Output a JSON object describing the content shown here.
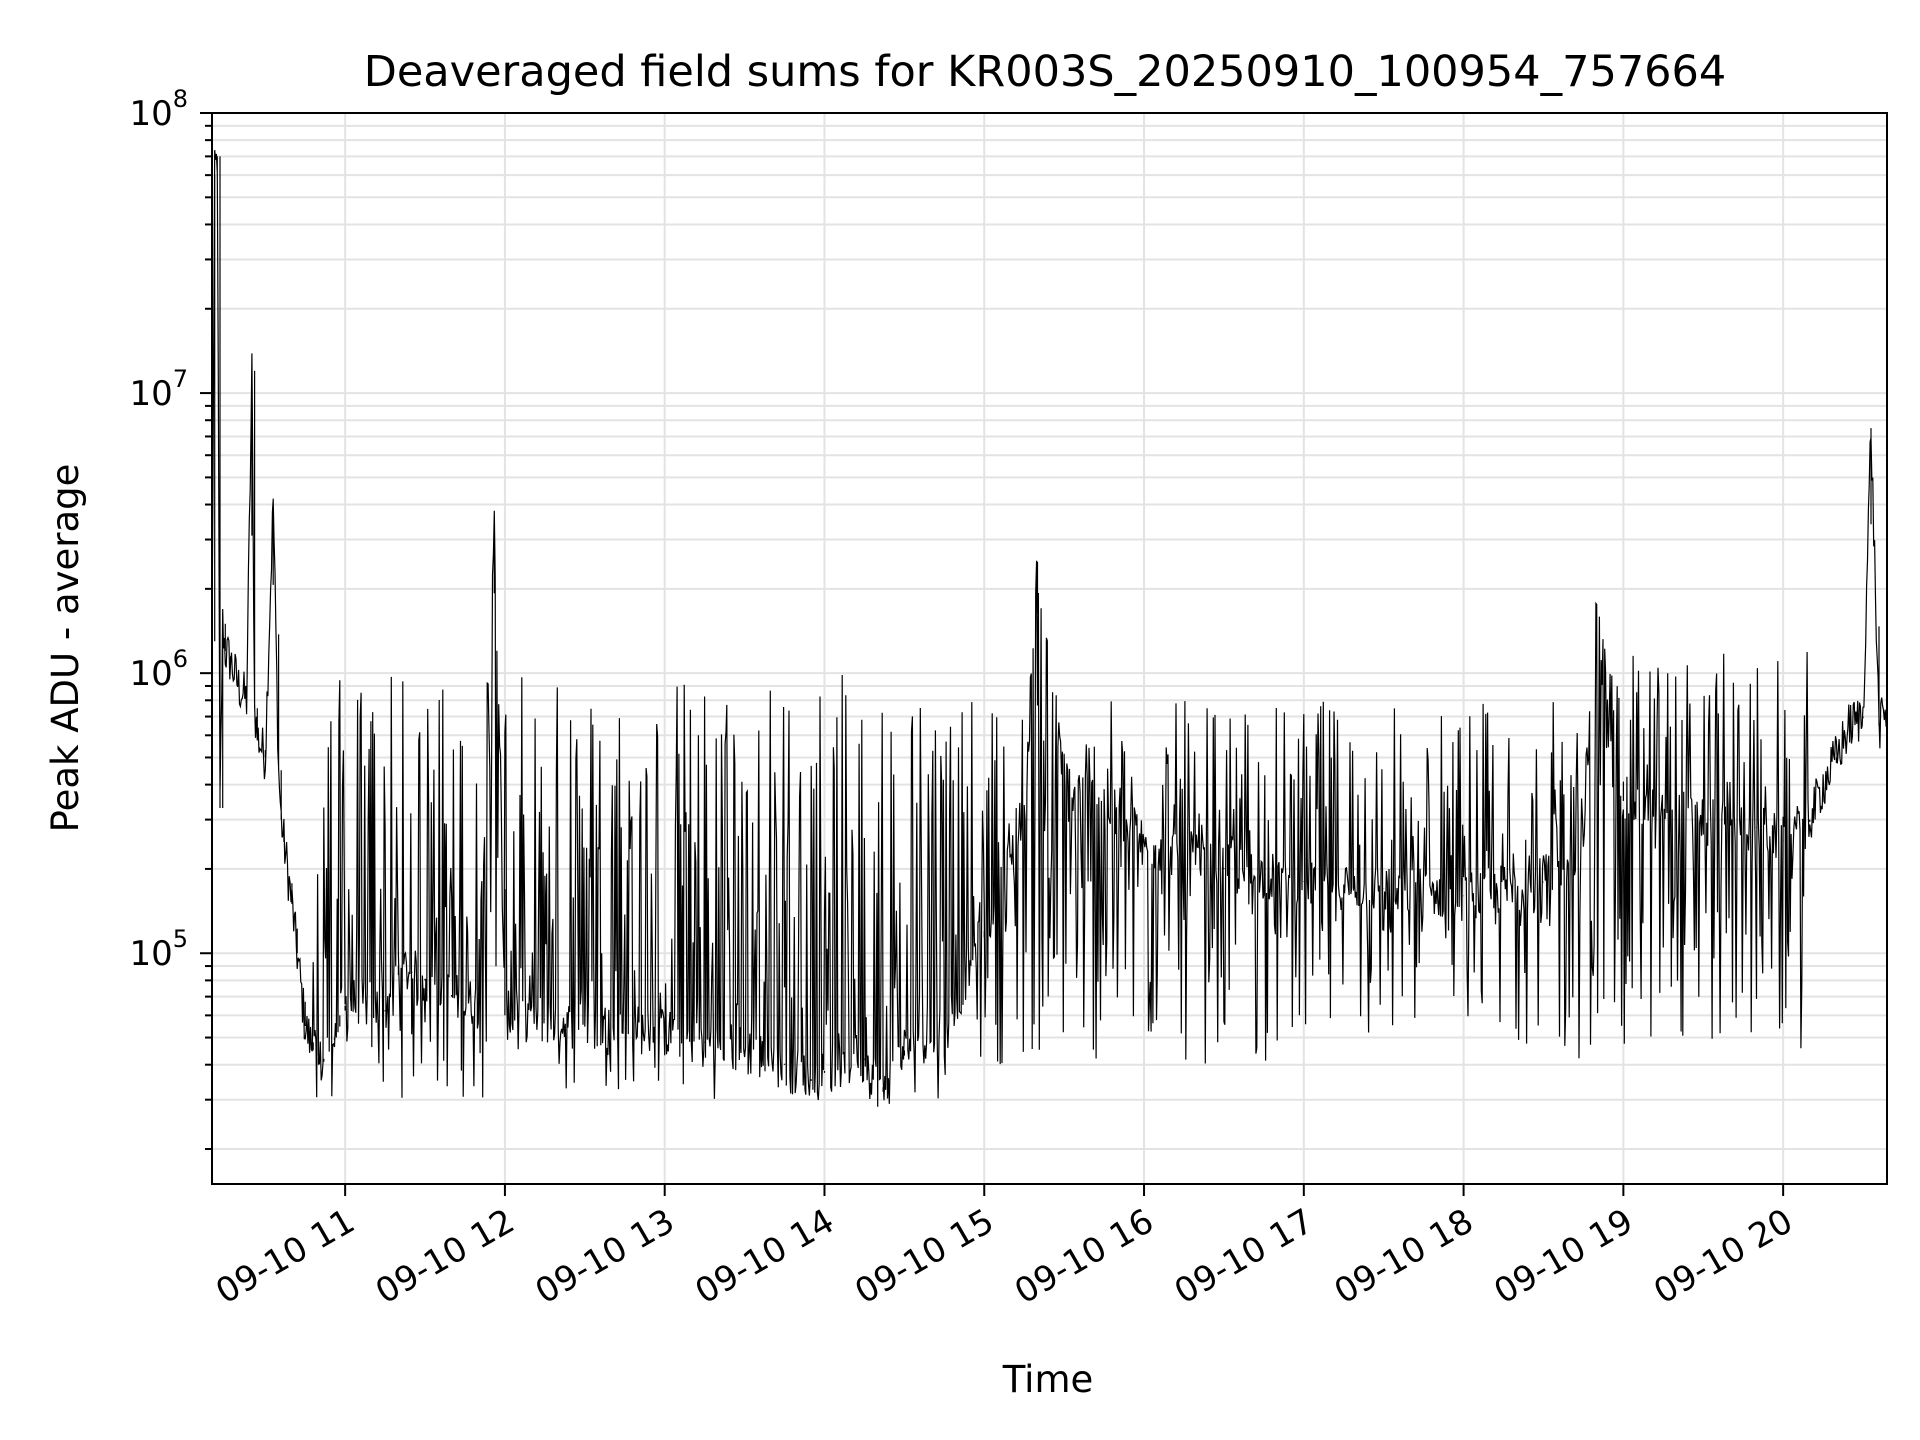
{
  "chart_data": {
    "type": "line",
    "title": "Deaveraged field sums for KR003S_20250910_100954_757664",
    "xlabel": "Time",
    "ylabel": "Peak ADU - average",
    "yscale": "log",
    "ylim": [
      15000,
      100000000
    ],
    "xlim": [
      "2025-09-10 10:10",
      "2025-09-10 20:39"
    ],
    "grid": true,
    "grid_minor_y": true,
    "x_ticks": [
      {
        "value": "2025-09-10 11:00",
        "label": "09-10 11"
      },
      {
        "value": "2025-09-10 12:00",
        "label": "09-10 12"
      },
      {
        "value": "2025-09-10 13:00",
        "label": "09-10 13"
      },
      {
        "value": "2025-09-10 14:00",
        "label": "09-10 14"
      },
      {
        "value": "2025-09-10 15:00",
        "label": "09-10 15"
      },
      {
        "value": "2025-09-10 16:00",
        "label": "09-10 16"
      },
      {
        "value": "2025-09-10 17:00",
        "label": "09-10 17"
      },
      {
        "value": "2025-09-10 18:00",
        "label": "09-10 18"
      },
      {
        "value": "2025-09-10 19:00",
        "label": "09-10 19"
      },
      {
        "value": "2025-09-10 20:00",
        "label": "09-10 20"
      }
    ],
    "y_ticks": [
      {
        "value": 100000,
        "base": "10",
        "exp": "5"
      },
      {
        "value": 1000000,
        "base": "10",
        "exp": "6"
      },
      {
        "value": 10000000,
        "base": "10",
        "exp": "7"
      },
      {
        "value": 100000000,
        "base": "10",
        "exp": "8"
      }
    ],
    "line_color": "#000000",
    "series": [
      {
        "x": [
          "2025-09-10 10:10",
          "2025-09-10 10:11",
          "2025-09-10 10:12",
          "2025-09-10 10:13",
          "2025-09-10 10:14",
          "2025-09-10 10:15",
          "2025-09-10 10:17",
          "2025-09-10 10:20",
          "2025-09-10 10:23",
          "2025-09-10 10:25",
          "2025-09-10 10:26",
          "2025-09-10 10:27",
          "2025-09-10 10:30",
          "2025-09-10 10:33",
          "2025-09-10 10:35",
          "2025-09-10 10:36",
          "2025-09-10 10:37",
          "2025-09-10 10:40",
          "2025-09-10 10:42",
          "2025-09-10 10:45",
          "2025-09-10 10:48",
          "2025-09-10 10:50",
          "2025-09-10 10:52",
          "2025-09-10 10:54",
          "2025-09-10 10:56",
          "2025-09-10 10:58",
          "2025-09-10 11:00",
          "2025-09-10 11:05",
          "2025-09-10 11:10",
          "2025-09-10 11:15",
          "2025-09-10 11:20",
          "2025-09-10 11:25",
          "2025-09-10 11:30",
          "2025-09-10 11:40",
          "2025-09-10 11:50",
          "2025-09-10 11:56",
          "2025-09-10 12:00",
          "2025-09-10 12:15",
          "2025-09-10 12:30",
          "2025-09-10 12:45",
          "2025-09-10 13:00",
          "2025-09-10 13:15",
          "2025-09-10 13:30",
          "2025-09-10 13:45",
          "2025-09-10 13:55",
          "2025-09-10 14:00",
          "2025-09-10 14:15",
          "2025-09-10 14:22",
          "2025-09-10 14:30",
          "2025-09-10 14:45",
          "2025-09-10 15:00",
          "2025-09-10 15:15",
          "2025-09-10 15:20",
          "2025-09-10 15:30",
          "2025-09-10 15:45",
          "2025-09-10 16:00",
          "2025-09-10 16:30",
          "2025-09-10 17:00",
          "2025-09-10 17:30",
          "2025-09-10 18:00",
          "2025-09-10 18:30",
          "2025-09-10 18:45",
          "2025-09-10 18:50",
          "2025-09-10 19:00",
          "2025-09-10 19:30",
          "2025-09-10 19:50",
          "2025-09-10 20:00",
          "2025-09-10 20:10",
          "2025-09-10 20:15",
          "2025-09-10 20:20",
          "2025-09-10 20:25",
          "2025-09-10 20:30",
          "2025-09-10 20:33",
          "2025-09-10 20:36",
          "2025-09-10 20:39"
        ],
        "y": [
          1300000,
          60000000,
          70000000,
          330000,
          1500000,
          1200000,
          1100000,
          900000,
          800000,
          12000000,
          750000,
          600000,
          500000,
          4200000,
          450000,
          300000,
          250000,
          150000,
          100000,
          55000,
          45000,
          40000,
          42000,
          48000,
          50000,
          60000,
          65000,
          68000,
          65000,
          62000,
          90000,
          85000,
          80000,
          70000,
          65000,
          3800000,
          60000,
          58000,
          55000,
          54000,
          52000,
          48000,
          45000,
          40000,
          35000,
          38000,
          42000,
          32000,
          45000,
          55000,
          120000,
          300000,
          2500000,
          400000,
          350000,
          250000,
          200000,
          180000,
          170000,
          160000,
          180000,
          250000,
          1700000,
          350000,
          300000,
          280000,
          250000,
          300000,
          400000,
          500000,
          650000,
          700000,
          7500000,
          650000,
          700000
        ]
      }
    ],
    "spikes_to_value_range": [
      {
        "start": "2025-09-10 10:48",
        "end": "2025-09-10 14:50",
        "low": 30000,
        "high": 1000000
      },
      {
        "start": "2025-09-10 14:50",
        "end": "2025-09-10 18:45",
        "low": 40000,
        "high": 800000
      },
      {
        "start": "2025-09-10 18:45",
        "end": "2025-09-10 20:10",
        "low": 45000,
        "high": 1200000
      }
    ]
  }
}
